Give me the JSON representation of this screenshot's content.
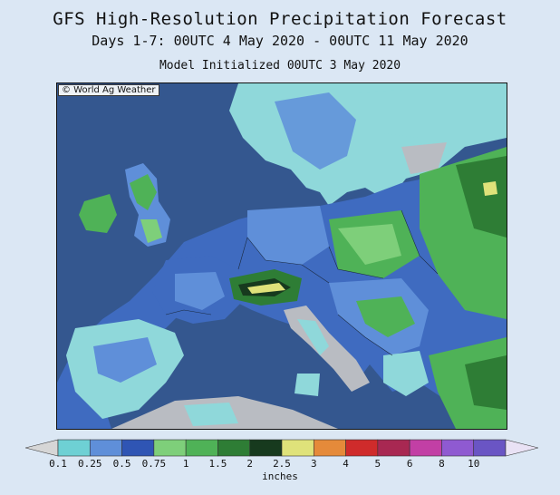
{
  "header": {
    "title": "GFS High-Resolution Precipitation Forecast",
    "subtitle": "Days 1-7: 00UTC 4 May 2020 - 00UTC 11 May 2020",
    "init": "Model Initialized 00UTC 3 May 2020"
  },
  "map": {
    "copyright": "© World Ag Weather"
  },
  "legend": {
    "units": "inches",
    "ticks": [
      "0.1",
      "0.25",
      "0.5",
      "0.75",
      "1",
      "1.5",
      "2",
      "2.5",
      "3",
      "4",
      "5",
      "6",
      "8",
      "10"
    ],
    "colors": [
      "#6ed0d4",
      "#5f8fd9",
      "#2f55b4",
      "#7ecf7a",
      "#4fb257",
      "#2e7d35",
      "#173a1e",
      "#dfe27a",
      "#e58a3a",
      "#cf2b2b",
      "#a82852",
      "#c23fa5",
      "#8f5ad1",
      "#6a55c4"
    ],
    "under_color": "#d6d6d6",
    "over_color": "#e9e2f5"
  },
  "colors": {
    "sea": "#34578f",
    "land_dry": "#b9bcc2",
    "light_cyan": "#8fd8da"
  }
}
